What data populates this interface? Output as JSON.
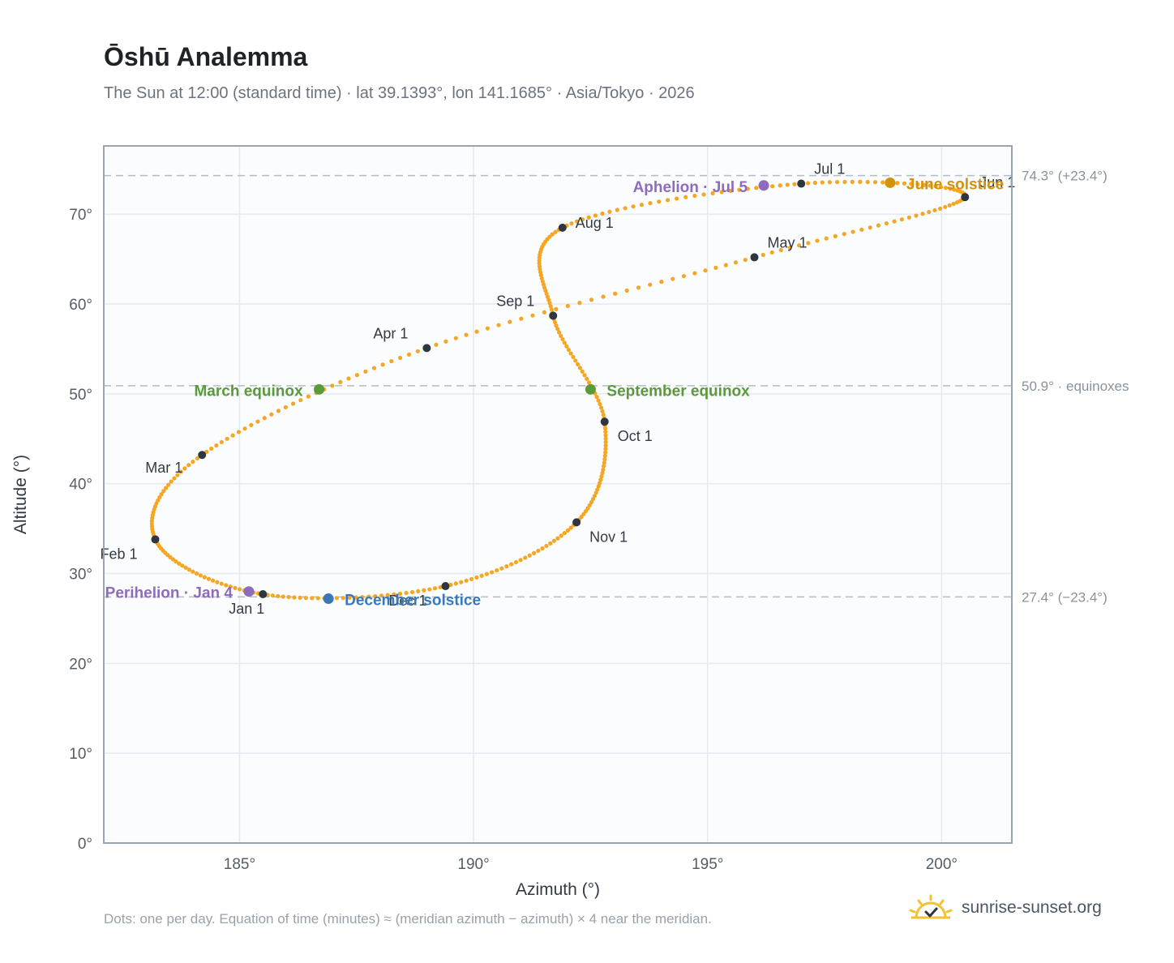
{
  "header": {
    "title": "Ōshū Analemma",
    "subtitle": "The Sun at 12:00 (standard time) · lat 39.1393°, lon 141.1685° · Asia/Tokyo · 2026"
  },
  "footer": {
    "note": "Dots: one per day. Equation of time (minutes) ≈ (meridian azimuth − azimuth) × 4 near the meridian.",
    "brand": "sunrise-sunset.org"
  },
  "colors": {
    "path": "#f5a623",
    "month": "#2f3640",
    "equinox": "#5a9a3a",
    "june": "#d4920a",
    "december": "#3a78b8",
    "apsis": "#8e6bbf",
    "grid": "#e5eaf0",
    "frame": "#9aa3ae",
    "ref": "#b5bcc5"
  },
  "chart_data": {
    "type": "scatter",
    "title": "Ōshū Analemma",
    "xlabel": "Azimuth (°)",
    "ylabel": "Altitude (°)",
    "xlim": [
      182.1,
      201.5
    ],
    "ylim": [
      0,
      77.6
    ],
    "x_ticks": [
      185,
      190,
      195,
      200
    ],
    "x_tick_labels": [
      "185°",
      "190°",
      "195°",
      "200°"
    ],
    "y_ticks": [
      0,
      10,
      20,
      30,
      40,
      50,
      60,
      70
    ],
    "y_tick_labels": [
      "0°",
      "10°",
      "20°",
      "30°",
      "40°",
      "50°",
      "60°",
      "70°"
    ],
    "grid": true,
    "reference_lines": [
      {
        "y": 74.3,
        "label": "74.3° (+23.4°)"
      },
      {
        "y": 50.9,
        "label": "50.9° · equinoxes"
      },
      {
        "y": 27.4,
        "label": "27.4° (−23.4°)"
      }
    ],
    "month_points": [
      {
        "label": "Jan 1",
        "x": 185.5,
        "y": 27.7
      },
      {
        "label": "Feb 1",
        "x": 183.2,
        "y": 33.8
      },
      {
        "label": "Mar 1",
        "x": 184.2,
        "y": 43.2
      },
      {
        "label": "Apr 1",
        "x": 189.0,
        "y": 55.1
      },
      {
        "label": "May 1",
        "x": 196.0,
        "y": 65.2
      },
      {
        "label": "Jun 1",
        "x": 200.5,
        "y": 71.9
      },
      {
        "label": "Jul 1",
        "x": 197.0,
        "y": 73.4
      },
      {
        "label": "Aug 1",
        "x": 191.9,
        "y": 68.5
      },
      {
        "label": "Sep 1",
        "x": 191.7,
        "y": 58.7
      },
      {
        "label": "Oct 1",
        "x": 192.8,
        "y": 46.9
      },
      {
        "label": "Nov 1",
        "x": 192.2,
        "y": 35.7
      },
      {
        "label": "Dec 1",
        "x": 189.4,
        "y": 28.6
      }
    ],
    "events": [
      {
        "label": "March equinox",
        "x": 186.7,
        "y": 50.5,
        "kind": "equinox"
      },
      {
        "label": "September equinox",
        "x": 192.5,
        "y": 50.5,
        "kind": "equinox"
      },
      {
        "label": "June solstice",
        "x": 198.9,
        "y": 73.5,
        "kind": "june"
      },
      {
        "label": "December solstice",
        "x": 186.9,
        "y": 27.2,
        "kind": "december"
      },
      {
        "label": "Aphelion · Jul 5",
        "x": 196.2,
        "y": 73.2,
        "kind": "apsis"
      },
      {
        "label": "Perihelion · Jan 4",
        "x": 185.2,
        "y": 28.0,
        "kind": "apsis"
      }
    ]
  }
}
